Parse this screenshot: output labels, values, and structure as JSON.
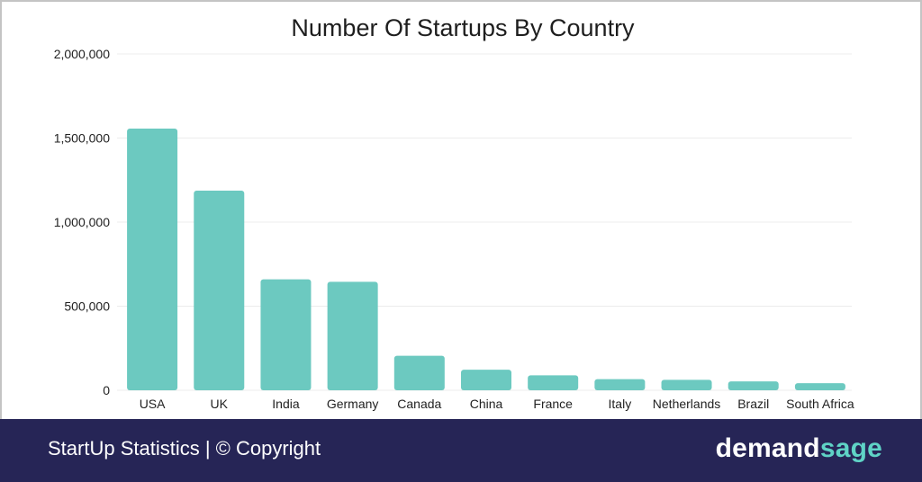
{
  "chart_data": {
    "type": "bar",
    "title": "Number Of Startups By Country",
    "xlabel": "",
    "ylabel": "",
    "categories": [
      "USA",
      "UK",
      "India",
      "Germany",
      "Canada",
      "China",
      "France",
      "Italy",
      "Netherlands",
      "Brazil",
      "South Africa"
    ],
    "values": [
      1556000,
      1187000,
      660000,
      645000,
      205000,
      122000,
      89000,
      66000,
      62000,
      53000,
      42000
    ],
    "ylim": [
      0,
      2000000
    ],
    "yticks": [
      "0",
      "500,000",
      "1,000,000",
      "1,500,000",
      "2,000,000"
    ],
    "ytick_values": [
      0,
      500000,
      1000000,
      1500000,
      2000000
    ],
    "grid": true,
    "bar_color": "#6cc9c0"
  },
  "footer": {
    "caption": "StartUp Statistics | © Copyright",
    "brand_part1": "demand",
    "brand_part2": "sage"
  },
  "colors": {
    "footer_bg": "#262556",
    "brand_accent": "#5fd3c6"
  }
}
